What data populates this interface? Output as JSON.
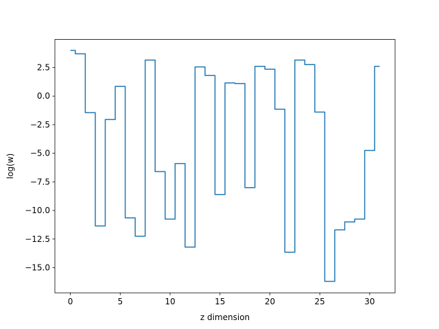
{
  "chart_data": {
    "type": "line",
    "drawstyle": "steps-mid",
    "title": "",
    "xlabel": "z dimension",
    "ylabel": "log(w)",
    "xlim": [
      -1.55,
      32.55
    ],
    "ylim": [
      -17.2,
      4.95
    ],
    "xticks": [
      0,
      5,
      10,
      15,
      20,
      25,
      30
    ],
    "xtick_labels": [
      "0",
      "5",
      "10",
      "15",
      "20",
      "25",
      "30"
    ],
    "yticks": [
      2.5,
      0.0,
      -2.5,
      -5.0,
      -7.5,
      -10.0,
      -12.5,
      -15.0
    ],
    "ytick_labels": [
      "2.5",
      "0.0",
      "−2.5",
      "−5.0",
      "−7.5",
      "−10.0",
      "−12.5",
      "−15.0"
    ],
    "grid": false,
    "line_color": "#1f77b4",
    "x": [
      0,
      1,
      2,
      3,
      4,
      5,
      6,
      7,
      8,
      9,
      10,
      11,
      12,
      13,
      14,
      15,
      16,
      17,
      18,
      19,
      20,
      21,
      22,
      23,
      24,
      25,
      26,
      27,
      28,
      29,
      30,
      31
    ],
    "y": [
      4.0,
      3.7,
      -1.45,
      -11.35,
      -2.05,
      0.85,
      -10.65,
      -12.25,
      3.15,
      -6.6,
      -10.75,
      -5.9,
      -13.2,
      2.55,
      1.8,
      -8.6,
      1.15,
      1.1,
      -8.0,
      2.6,
      2.35,
      -1.15,
      -13.65,
      3.15,
      2.75,
      -1.4,
      -16.2,
      -11.7,
      -11.0,
      -10.75,
      -4.75,
      2.6
    ]
  }
}
